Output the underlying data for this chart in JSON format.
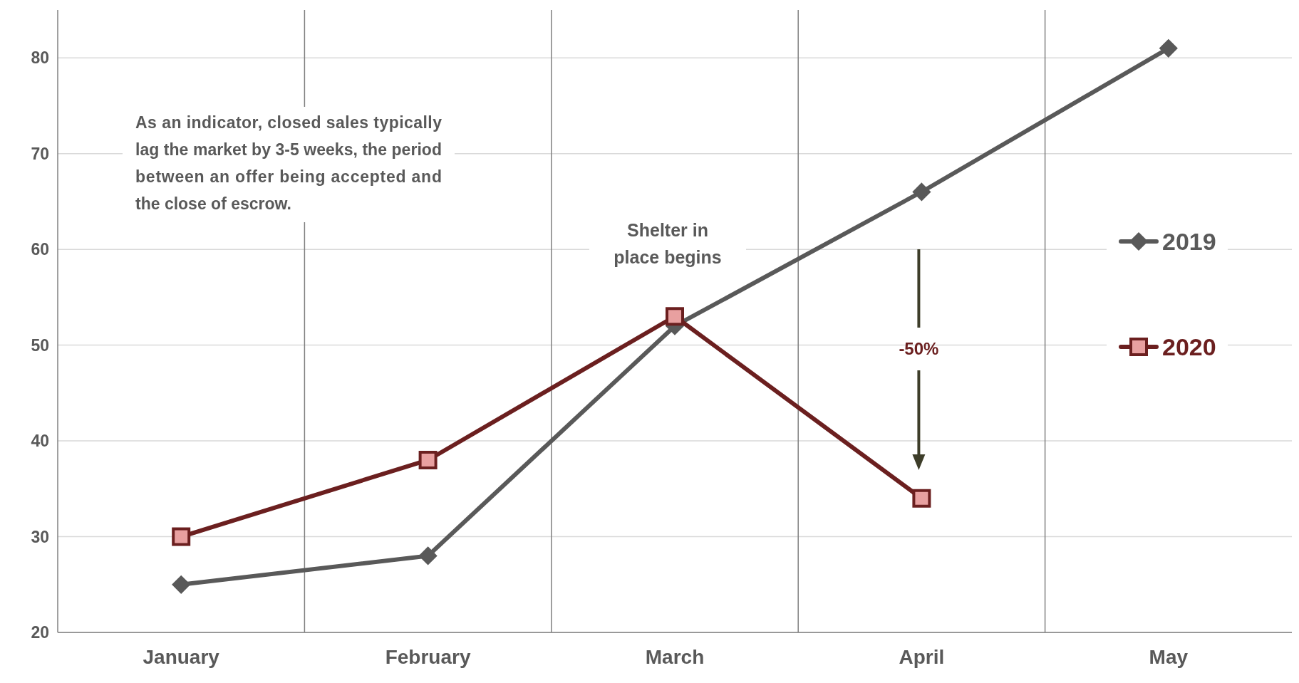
{
  "chart_data": {
    "type": "line",
    "categories": [
      "January",
      "February",
      "March",
      "April",
      "May"
    ],
    "series": [
      {
        "name": "2019",
        "color": "#595959",
        "values": [
          25,
          28,
          52,
          66,
          81
        ],
        "marker": "diamond"
      },
      {
        "name": "2020",
        "color": "#6b1f1f",
        "values": [
          30,
          38,
          53,
          34,
          null
        ],
        "marker": "square"
      }
    ],
    "ylim": [
      20,
      85
    ],
    "yticks": [
      20,
      30,
      40,
      50,
      60,
      70,
      80
    ],
    "grid": true,
    "legend": "right",
    "line_style": "solid",
    "annotations": [
      "As an indicator, closed sales typically lag the market by 3-5 weeks, the period between an offer being accepted and the close of escrow.",
      "Shelter in place begins",
      "-50%"
    ]
  }
}
